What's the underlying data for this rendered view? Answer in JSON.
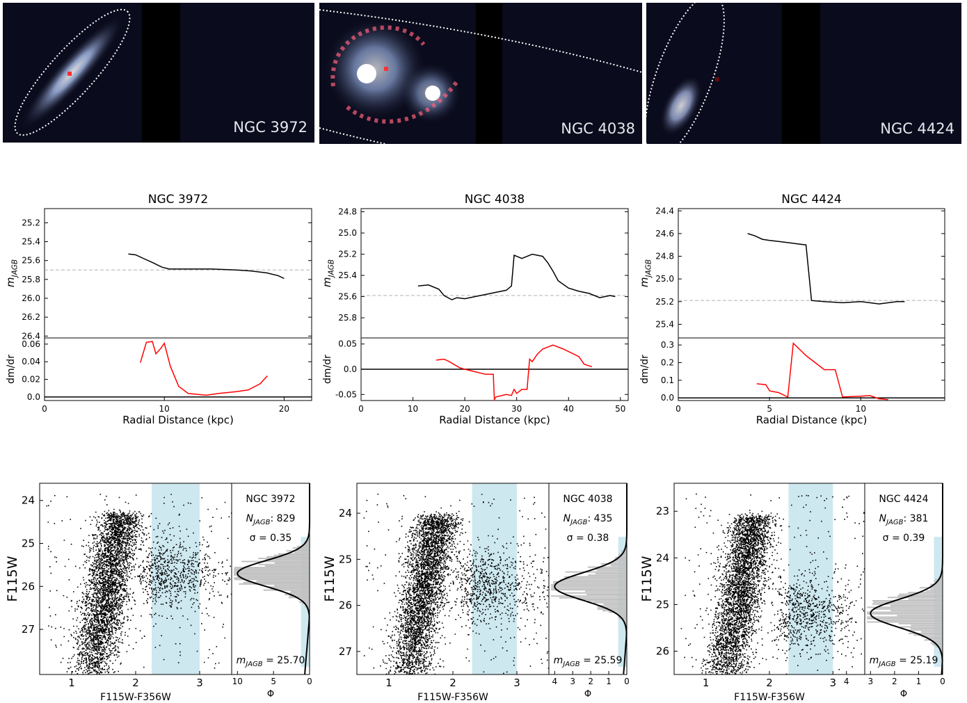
{
  "images": [
    {
      "label": "NGC 3972"
    },
    {
      "label": "NGC 4038"
    },
    {
      "label": "NGC 4424"
    }
  ],
  "colors": {
    "profile": "#000000",
    "derivative": "#ff0000",
    "reference": "#b0b0b0",
    "band": "#add8e6",
    "histogram": "#c0c0c0"
  },
  "chart_data": [
    {
      "type": "line",
      "title": "NGC 3972",
      "xlabel": "Radial Distance (kpc)",
      "ylabel": "m_JAGB",
      "xlim": [
        0,
        22.3
      ],
      "ylim": [
        26.42,
        25.05
      ],
      "y_inverted": true,
      "yticks": [
        "25.2",
        "25.4",
        "25.6",
        "25.8",
        "26.0",
        "26.2",
        "26.4"
      ],
      "reference_line": 25.7,
      "series": [
        {
          "x": [
            7,
            7.6,
            8.3,
            9,
            9.8,
            10.4,
            12,
            14,
            16,
            17.2,
            18.5,
            19.5,
            20
          ],
          "y": [
            25.53,
            25.54,
            25.58,
            25.62,
            25.67,
            25.69,
            25.69,
            25.69,
            25.7,
            25.71,
            25.73,
            25.76,
            25.79
          ]
        }
      ]
    },
    {
      "type": "line",
      "title": "",
      "xlabel": "Radial Distance (kpc)",
      "ylabel": "dm/dr",
      "xlim": [
        0,
        22.3
      ],
      "ylim": [
        -0.004,
        0.067
      ],
      "yticks": [
        "0.0",
        "0.02",
        "0.04",
        "0.06"
      ],
      "series": [
        {
          "x": [
            8,
            8.5,
            9,
            9.3,
            9.7,
            10,
            10.5,
            11.2,
            12,
            13.5,
            14.5,
            16,
            17,
            18,
            18.6
          ],
          "y": [
            0.039,
            0.062,
            0.063,
            0.049,
            0.055,
            0.061,
            0.035,
            0.012,
            0.004,
            0.002,
            0.004,
            0.006,
            0.008,
            0.015,
            0.024
          ]
        }
      ]
    },
    {
      "type": "line",
      "title": "NGC 4038",
      "xlabel": "Radial Distance (kpc)",
      "ylabel": "m_JAGB",
      "xlim": [
        0,
        51.5
      ],
      "ylim": [
        25.99,
        24.77
      ],
      "y_inverted": true,
      "yticks": [
        "24.8",
        "25.0",
        "25.2",
        "25.4",
        "25.6",
        "25.8"
      ],
      "reference_line": 25.59,
      "series": [
        {
          "x": [
            11,
            13,
            15,
            16,
            17.5,
            18.5,
            20,
            22,
            24,
            26,
            28,
            29,
            29.5,
            30,
            31,
            33,
            35,
            36,
            37,
            38,
            40,
            42,
            44,
            46,
            48,
            49
          ],
          "y": [
            25.5,
            25.49,
            25.53,
            25.59,
            25.63,
            25.61,
            25.62,
            25.6,
            25.58,
            25.56,
            25.54,
            25.5,
            25.21,
            25.22,
            25.24,
            25.2,
            25.22,
            25.28,
            25.36,
            25.45,
            25.52,
            25.55,
            25.57,
            25.61,
            25.59,
            25.6
          ]
        }
      ]
    },
    {
      "type": "line",
      "title": "",
      "xlabel": "Radial Distance (kpc)",
      "ylabel": "dm/dr",
      "xlim": [
        0,
        51.5
      ],
      "ylim": [
        -0.062,
        0.062
      ],
      "yticks": [
        "-0.05",
        "0.0",
        "0.05"
      ],
      "series": [
        {
          "x": [
            14.5,
            16,
            17,
            19,
            20,
            22,
            24,
            25.5,
            25.7,
            26,
            28,
            29,
            29.5,
            30,
            31,
            32,
            32.5,
            33,
            34,
            35,
            37,
            39,
            41,
            42,
            43,
            44.5
          ],
          "y": [
            0.018,
            0.02,
            0.015,
            0.003,
            0.0,
            -0.005,
            -0.01,
            -0.01,
            -0.06,
            -0.055,
            -0.05,
            -0.052,
            -0.04,
            -0.048,
            -0.04,
            -0.04,
            0.02,
            0.015,
            0.03,
            0.04,
            0.048,
            0.04,
            0.03,
            0.025,
            0.01,
            0.005
          ]
        }
      ]
    },
    {
      "type": "line",
      "title": "NGC 4424",
      "xlabel": "Radial Distance (kpc)",
      "ylabel": "m_JAGB",
      "xlim": [
        0,
        14.6
      ],
      "ylim": [
        25.52,
        24.38
      ],
      "y_inverted": true,
      "yticks": [
        "24.4",
        "24.6",
        "24.8",
        "25.0",
        "25.2",
        "25.4"
      ],
      "reference_line": 25.19,
      "series": [
        {
          "x": [
            3.8,
            4.2,
            4.6,
            5,
            5.5,
            6,
            6.5,
            7,
            7.3,
            8,
            9,
            10,
            10.5,
            11,
            11.5,
            12,
            12.4
          ],
          "y": [
            24.6,
            24.62,
            24.65,
            24.66,
            24.67,
            24.68,
            24.69,
            24.7,
            25.19,
            25.2,
            25.21,
            25.2,
            25.21,
            25.22,
            25.21,
            25.2,
            25.2
          ]
        }
      ]
    },
    {
      "type": "line",
      "title": "",
      "xlabel": "Radial Distance (kpc)",
      "ylabel": "dm/dr",
      "xlim": [
        0,
        14.6
      ],
      "ylim": [
        -0.015,
        0.34
      ],
      "yticks": [
        "0.0",
        "0.1",
        "0.2",
        "0.3"
      ],
      "series": [
        {
          "x": [
            4.3,
            4.8,
            5,
            5.5,
            6,
            6.3,
            7,
            7.5,
            8,
            8.6,
            9,
            10,
            10.5,
            11,
            11.5
          ],
          "y": [
            0.08,
            0.075,
            0.04,
            0.03,
            0.005,
            0.31,
            0.24,
            0.2,
            0.16,
            0.16,
            0.005,
            0.01,
            0.013,
            -0.005,
            -0.01
          ]
        }
      ]
    },
    {
      "type": "scatter",
      "title": "",
      "xlabel": "F115W-F356W",
      "ylabel": "F115W",
      "xlim": [
        0.5,
        3.5
      ],
      "ylim": [
        28.05,
        23.6
      ],
      "y_inverted": true,
      "xticks": [
        "1",
        "2",
        "3",
        "4"
      ],
      "yticks": [
        "24",
        "25",
        "26",
        "27"
      ],
      "color_band": [
        2.25,
        3.0
      ],
      "side_panel": {
        "xlabel": "Φ",
        "xticks": [
          "10",
          "5",
          "0"
        ],
        "name": "NGC 3972",
        "n_label": "N_JAGB",
        "n_value": "829",
        "sigma": "σ = 0.35",
        "m_label": "m_JAGB",
        "m_value": "= 25.70",
        "peak": 25.7,
        "peak_phi": 10
      }
    },
    {
      "type": "scatter",
      "title": "",
      "xlabel": "F115W-F356W",
      "ylabel": "F115W",
      "xlim": [
        0.5,
        3.5
      ],
      "ylim": [
        27.5,
        23.35
      ],
      "y_inverted": true,
      "xticks": [
        "1",
        "2",
        "3",
        "4"
      ],
      "yticks": [
        "24",
        "25",
        "26",
        "27"
      ],
      "color_band": [
        2.3,
        3.0
      ],
      "side_panel": {
        "xlabel": "Φ",
        "xticks": [
          "4",
          "3",
          "2",
          "1",
          "0"
        ],
        "name": "NGC 4038",
        "n_label": "N_JAGB",
        "n_value": "435",
        "sigma": "σ = 0.38",
        "m_label": "m_JAGB",
        "m_value": "= 25.59",
        "peak": 25.59,
        "peak_phi": 4
      }
    },
    {
      "type": "scatter",
      "title": "",
      "xlabel": "F115W-F356W",
      "ylabel": "F115W",
      "xlim": [
        0.5,
        3.5
      ],
      "ylim": [
        26.5,
        22.4
      ],
      "y_inverted": true,
      "xticks": [
        "1",
        "2",
        "3",
        "4"
      ],
      "yticks": [
        "23",
        "24",
        "25",
        "26"
      ],
      "color_band": [
        2.3,
        3.0
      ],
      "side_panel": {
        "xlabel": "Φ",
        "xticks": [
          "4",
          "3",
          "2",
          "1",
          "0"
        ],
        "name": "NGC 4424",
        "n_label": "N_JAGB",
        "n_value": "381",
        "sigma": "σ = 0.39",
        "m_label": "m_JAGB",
        "m_value": "= 25.19",
        "peak": 25.19,
        "peak_phi": 3
      }
    }
  ]
}
